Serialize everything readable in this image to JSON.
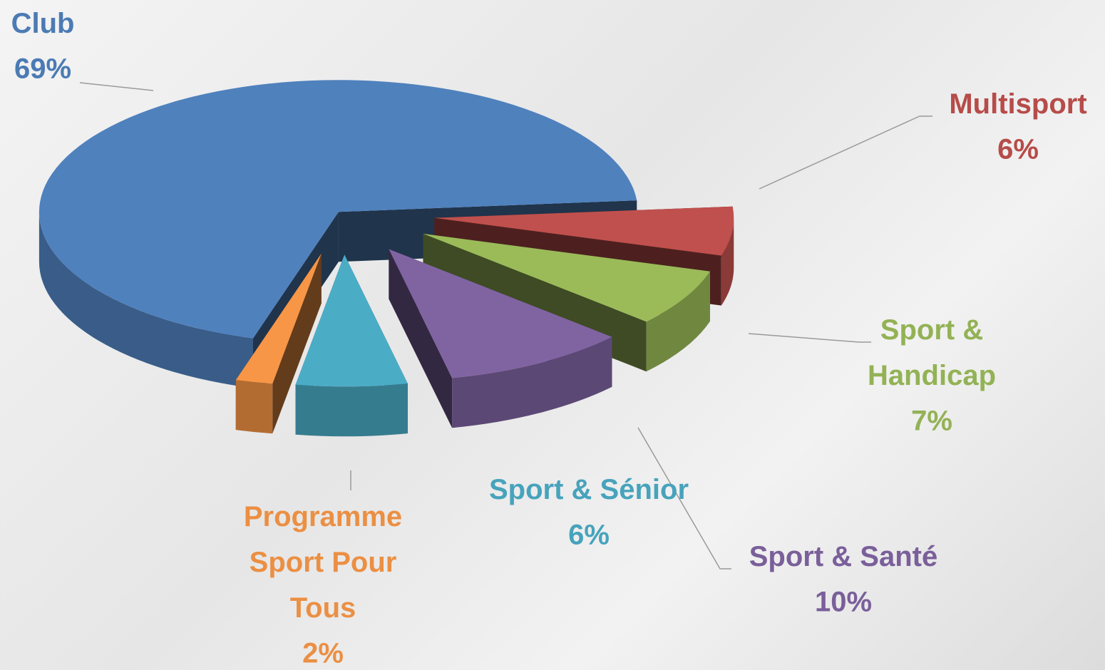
{
  "chart_data": {
    "type": "pie",
    "categories": [
      "Club",
      "Multisport",
      "Sport & Handicap",
      "Sport & Santé",
      "Sport & Sénior",
      "Programme Sport Pour Tous"
    ],
    "values": [
      69,
      6,
      7,
      10,
      6,
      2
    ],
    "value_labels": [
      "69%",
      "6%",
      "7%",
      "10%",
      "6%",
      "2%"
    ],
    "colors": [
      "#4f81bd",
      "#c0504d",
      "#9bbb59",
      "#8064a2",
      "#4bacc6",
      "#f79646"
    ]
  }
}
